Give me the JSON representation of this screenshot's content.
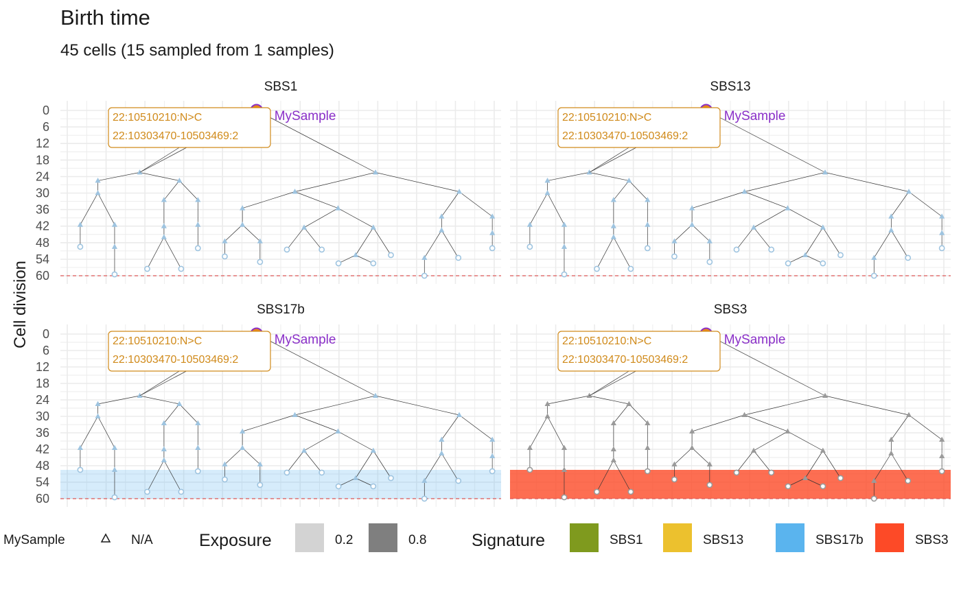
{
  "title": "Birth time",
  "subtitle": "45 cells (15 sampled from 1 samples)",
  "colors": {
    "sbs1": "#7f9a1e",
    "sbs13": "#ecc12e",
    "sbs17b": "#5ab4ee",
    "sbs3": "#fd4a27",
    "annotation": "#d08a1a",
    "sample": "#8a2fc8",
    "sample_fill": "#e8891a",
    "reference_line": "#e05a5a",
    "node": "#9ec4e0"
  },
  "legend": {
    "sample_label": "MySample",
    "sample_value": "N/A",
    "exposure_title": "Exposure",
    "exposure_items": [
      {
        "label": "0.2",
        "color": "#d3d3d3"
      },
      {
        "label": "0.8",
        "color": "#7f7f7f"
      }
    ],
    "signature_title": "Signature",
    "signature_items": [
      {
        "label": "SBS1",
        "color": "#7f9a1e"
      },
      {
        "label": "SBS13",
        "color": "#ecc12e"
      },
      {
        "label": "SBS17b",
        "color": "#5ab4ee"
      },
      {
        "label": "SBS3",
        "color": "#fd4a27"
      }
    ]
  },
  "chart_data": {
    "type": "tree",
    "ylabel": "Cell division",
    "y_ticks": [
      0,
      6,
      12,
      18,
      24,
      30,
      36,
      42,
      48,
      54,
      60
    ],
    "ylim": [
      0,
      60
    ],
    "y_reversed": true,
    "reference_line": 60,
    "sample_name": "MySample",
    "annotation": [
      "22:10510210:N>C",
      "22:10303470-10503469:2"
    ],
    "panels": [
      {
        "name": "SBS1",
        "exposure_band": null
      },
      {
        "name": "SBS13",
        "exposure_band": null
      },
      {
        "name": "SBS17b",
        "exposure_band": {
          "from": 49.5,
          "to": 60,
          "color": "#5ab4ee",
          "opacity": 0.25
        }
      },
      {
        "name": "SBS3",
        "exposure_band": {
          "from": 49.5,
          "to": 60,
          "color": "#fd4a27",
          "opacity": 0.8
        }
      }
    ],
    "tree_nodes": [
      {
        "id": "root",
        "x": 0.445,
        "t": 0
      },
      {
        "id": "A",
        "x": 0.18,
        "t": 22.5
      },
      {
        "id": "B",
        "x": 0.715,
        "t": 22.5
      },
      {
        "id": "A1",
        "x": 0.085,
        "t": 25.5,
        "p": "A"
      },
      {
        "id": "A2",
        "x": 0.27,
        "t": 25.5,
        "p": "A"
      },
      {
        "id": "A1a",
        "x": 0.085,
        "t": 30,
        "p": "A1"
      },
      {
        "id": "a1",
        "x": 0.045,
        "t": 41.5,
        "p": "A1a"
      },
      {
        "id": "a1l",
        "x": 0.045,
        "t": 49.5,
        "p": "a1",
        "leaf": true
      },
      {
        "id": "a2",
        "x": 0.123,
        "t": 41.5,
        "p": "A1a"
      },
      {
        "id": "a2m",
        "x": 0.123,
        "t": 49.5,
        "p": "a2"
      },
      {
        "id": "a2l",
        "x": 0.123,
        "t": 59.5,
        "p": "a2m",
        "leaf": true
      },
      {
        "id": "A2a",
        "x": 0.235,
        "t": 32.5,
        "p": "A2"
      },
      {
        "id": "A2b",
        "x": 0.235,
        "t": 42,
        "p": "A2a"
      },
      {
        "id": "A2c",
        "x": 0.235,
        "t": 46,
        "p": "A2b"
      },
      {
        "id": "c1",
        "x": 0.197,
        "t": 57.5,
        "p": "A2c",
        "leaf": true
      },
      {
        "id": "c2",
        "x": 0.274,
        "t": 57.5,
        "p": "A2c",
        "leaf": true
      },
      {
        "id": "A2d",
        "x": 0.312,
        "t": 32.5,
        "p": "A2"
      },
      {
        "id": "A2e",
        "x": 0.312,
        "t": 41.5,
        "p": "A2d"
      },
      {
        "id": "A2f",
        "x": 0.312,
        "t": 50,
        "p": "A2e",
        "leaf": true
      },
      {
        "id": "B1",
        "x": 0.532,
        "t": 29.5,
        "p": "B"
      },
      {
        "id": "B2",
        "x": 0.905,
        "t": 29.5,
        "p": "B"
      },
      {
        "id": "B1a",
        "x": 0.413,
        "t": 35.5,
        "p": "B1"
      },
      {
        "id": "B1b",
        "x": 0.413,
        "t": 41.5,
        "p": "B1a"
      },
      {
        "id": "b1",
        "x": 0.373,
        "t": 47.5,
        "p": "B1b"
      },
      {
        "id": "b1l",
        "x": 0.373,
        "t": 53,
        "p": "b1",
        "leaf": true
      },
      {
        "id": "b2",
        "x": 0.453,
        "t": 47.5,
        "p": "B1b"
      },
      {
        "id": "b2l",
        "x": 0.453,
        "t": 55,
        "p": "b2",
        "leaf": true
      },
      {
        "id": "B1c",
        "x": 0.63,
        "t": 35.5,
        "p": "B1"
      },
      {
        "id": "B1d",
        "x": 0.553,
        "t": 42.5,
        "p": "B1c"
      },
      {
        "id": "d1",
        "x": 0.514,
        "t": 50.5,
        "p": "B1d",
        "leaf": true
      },
      {
        "id": "d2",
        "x": 0.593,
        "t": 50.5,
        "p": "B1d",
        "leaf": true
      },
      {
        "id": "B1e",
        "x": 0.71,
        "t": 42.5,
        "p": "B1c"
      },
      {
        "id": "B1f",
        "x": 0.67,
        "t": 52.5,
        "p": "B1e"
      },
      {
        "id": "e1",
        "x": 0.631,
        "t": 55.5,
        "p": "B1f",
        "leaf": true
      },
      {
        "id": "e2",
        "x": 0.71,
        "t": 55.5,
        "p": "B1f",
        "leaf": true
      },
      {
        "id": "e3",
        "x": 0.75,
        "t": 52.5,
        "p": "B1e",
        "leaf": true
      },
      {
        "id": "B2a",
        "x": 0.865,
        "t": 38.5,
        "p": "B2"
      },
      {
        "id": "B2b",
        "x": 0.865,
        "t": 43.5,
        "p": "B2a"
      },
      {
        "id": "f1",
        "x": 0.826,
        "t": 53.5,
        "p": "B2b"
      },
      {
        "id": "f1l",
        "x": 0.826,
        "t": 60,
        "p": "f1",
        "leaf": true
      },
      {
        "id": "f2",
        "x": 0.903,
        "t": 53.5,
        "p": "B2b",
        "leaf": true
      },
      {
        "id": "B2c",
        "x": 0.98,
        "t": 38.5,
        "p": "B2"
      },
      {
        "id": "B2d",
        "x": 0.98,
        "t": 44.5,
        "p": "B2c"
      },
      {
        "id": "B2e",
        "x": 0.98,
        "t": 50,
        "p": "B2d",
        "leaf": true
      }
    ]
  }
}
